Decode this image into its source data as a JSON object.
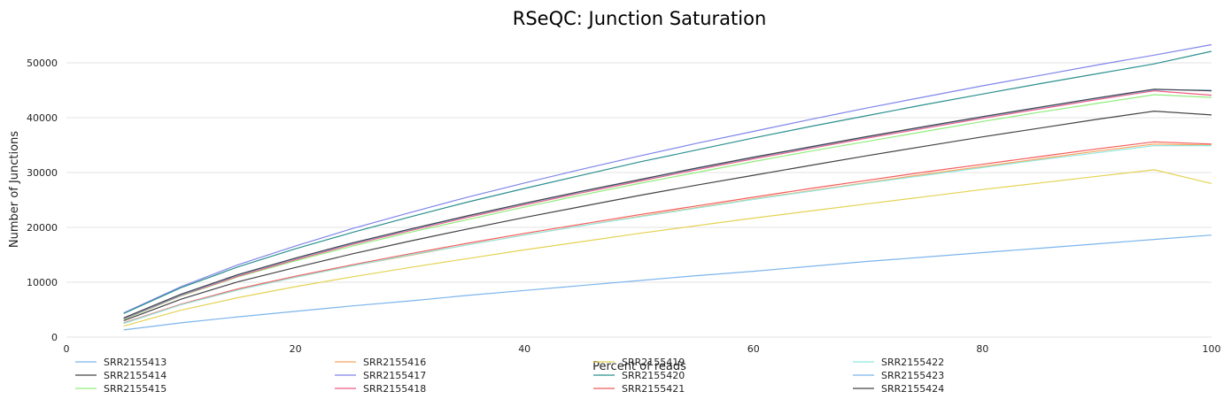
{
  "chart_data": {
    "type": "line",
    "title": "RSeQC: Junction Saturation",
    "xlabel": "Percent of reads",
    "ylabel": "Number of Junctions",
    "xlim": [
      0,
      100
    ],
    "ylim": [
      0,
      55000
    ],
    "xticks": [
      0,
      20,
      40,
      60,
      80,
      100
    ],
    "yticks": [
      0,
      10000,
      20000,
      30000,
      40000,
      50000
    ],
    "grid": "horizontal",
    "legend_position": "bottom",
    "x": [
      5,
      10,
      15,
      20,
      25,
      30,
      35,
      40,
      45,
      50,
      55,
      60,
      65,
      70,
      75,
      80,
      85,
      90,
      95,
      100
    ],
    "series": [
      {
        "name": "SRR2155413",
        "color": "#7cb5ec",
        "values": [
          1300,
          2600,
          3700,
          4700,
          5700,
          6600,
          7600,
          8500,
          9400,
          10300,
          11200,
          12000,
          12900,
          13800,
          14600,
          15400,
          16200,
          17000,
          17800,
          18600
        ]
      },
      {
        "name": "SRR2155414",
        "color": "#434348",
        "values": [
          3000,
          6900,
          10100,
          12700,
          15200,
          17500,
          19700,
          21800,
          23800,
          25800,
          27700,
          29500,
          31300,
          33100,
          34800,
          36500,
          38100,
          39700,
          41200,
          40500
        ]
      },
      {
        "name": "SRR2155415",
        "color": "#90ed7d",
        "values": [
          3200,
          7500,
          11000,
          13900,
          16600,
          19100,
          21400,
          23700,
          25900,
          28000,
          30000,
          32000,
          33900,
          35700,
          37500,
          39300,
          41000,
          42600,
          44200,
          43700
        ]
      },
      {
        "name": "SRR2155416",
        "color": "#f7a35c",
        "values": [
          2500,
          5900,
          8600,
          10900,
          13000,
          14900,
          16800,
          18600,
          20300,
          22000,
          23600,
          25200,
          26700,
          28200,
          29700,
          31100,
          32500,
          33900,
          35200,
          35000
        ]
      },
      {
        "name": "SRR2155417",
        "color": "#8085e9",
        "values": [
          4400,
          9200,
          13200,
          16600,
          19800,
          22700,
          25500,
          28100,
          30600,
          33000,
          35300,
          37500,
          39700,
          41800,
          43800,
          45800,
          47700,
          49600,
          51400,
          53300
        ]
      },
      {
        "name": "SRR2155418",
        "color": "#f15c80",
        "values": [
          3300,
          7600,
          11100,
          14100,
          16900,
          19400,
          21800,
          24100,
          26300,
          28400,
          30500,
          32500,
          34400,
          36300,
          38100,
          39900,
          41600,
          43300,
          44900,
          44100
        ]
      },
      {
        "name": "SRR2155419",
        "color": "#e4d354",
        "values": [
          2000,
          4900,
          7200,
          9200,
          11000,
          12700,
          14300,
          15900,
          17400,
          18900,
          20300,
          21700,
          23000,
          24300,
          25600,
          26900,
          28100,
          29300,
          30500,
          28000
        ]
      },
      {
        "name": "SRR2155420",
        "color": "#2b908f",
        "values": [
          4300,
          9000,
          12800,
          16100,
          19100,
          21900,
          24600,
          27100,
          29500,
          31900,
          34100,
          36300,
          38400,
          40400,
          42400,
          44300,
          46200,
          48000,
          49800,
          52100
        ]
      },
      {
        "name": "SRR2155421",
        "color": "#f45b5b",
        "values": [
          2600,
          6000,
          8800,
          11100,
          13200,
          15200,
          17100,
          18900,
          20600,
          22300,
          23900,
          25500,
          27100,
          28600,
          30100,
          31500,
          32900,
          34300,
          35600,
          35200
        ]
      },
      {
        "name": "SRR2155422",
        "color": "#91e8e1",
        "values": [
          2500,
          5900,
          8600,
          10900,
          13000,
          15000,
          16800,
          18600,
          20300,
          21900,
          23500,
          25100,
          26600,
          28100,
          29500,
          30900,
          32300,
          33600,
          34900,
          34900
        ]
      },
      {
        "name": "SRR2155423",
        "color": "#7cb5ec",
        "values": [
          3400,
          7700,
          11300,
          14300,
          17100,
          19600,
          22000,
          24300,
          26500,
          28600,
          30700,
          32700,
          34600,
          36500,
          38300,
          40100,
          41800,
          43500,
          45100,
          45000
        ]
      },
      {
        "name": "SRR2155424",
        "color": "#434348",
        "values": [
          3500,
          7800,
          11400,
          14400,
          17200,
          19700,
          22100,
          24400,
          26600,
          28700,
          30800,
          32800,
          34700,
          36600,
          38400,
          40200,
          41900,
          43600,
          45200,
          44900
        ]
      }
    ]
  }
}
